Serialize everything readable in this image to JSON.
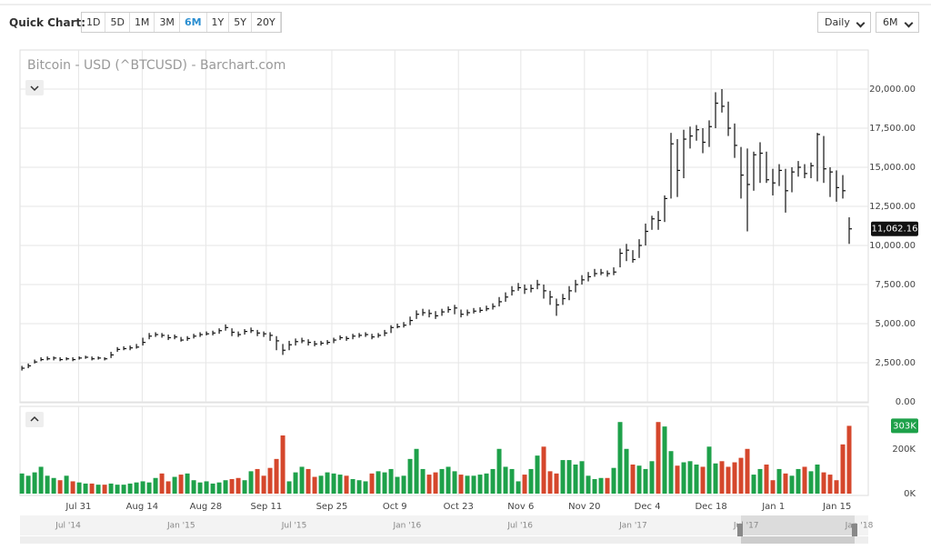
{
  "toolbar": {
    "label": "Quick Chart:",
    "ranges": [
      "1D",
      "5D",
      "1M",
      "3M",
      "6M",
      "1Y",
      "5Y",
      "20Y"
    ],
    "active": 4,
    "interval": "Daily",
    "period": "6M"
  },
  "chart_data": {
    "type": "ohlc",
    "title": "Bitcoin - USD (^BTCUSD) - Barchart.com",
    "color": "#111",
    "grid": true,
    "high": [
      2300,
      2450,
      2700,
      2850,
      2900,
      2900,
      2850,
      2850,
      2850,
      2900,
      2950,
      2900,
      2900,
      2850,
      3200,
      3500,
      3550,
      3600,
      3700,
      4100,
      4400,
      4450,
      4400,
      4300,
      4300,
      4150,
      4200,
      4350,
      4450,
      4500,
      4550,
      4700,
      4950,
      4700,
      4500,
      4650,
      4750,
      4600,
      4500,
      4450,
      4200,
      3700,
      3900,
      4050,
      4100,
      4000,
      3900,
      3900,
      3950,
      4100,
      4250,
      4200,
      4350,
      4400,
      4450,
      4350,
      4400,
      4600,
      4900,
      5000,
      5100,
      5450,
      5850,
      5950,
      5900,
      5800,
      5950,
      6100,
      6200,
      5900,
      5900,
      6000,
      6050,
      6150,
      6300,
      6700,
      7000,
      7400,
      7600,
      7500,
      7500,
      7800,
      7500,
      7100,
      6600,
      6900,
      7400,
      7800,
      8100,
      8300,
      8500,
      8500,
      8400,
      8600,
      9800,
      10100,
      9700,
      10400,
      11400,
      11900,
      12200,
      13200,
      17200,
      16800,
      17400,
      17600,
      17700,
      17500,
      18000,
      19800,
      20000,
      19200,
      17800,
      16300,
      16200,
      16000,
      16600,
      16000,
      14900,
      15200,
      14900,
      15000,
      15400,
      15200,
      15300,
      17200,
      17000,
      15000,
      14800,
      14500,
      11800
    ],
    "low": [
      2000,
      2150,
      2450,
      2600,
      2650,
      2650,
      2600,
      2650,
      2600,
      2700,
      2750,
      2650,
      2700,
      2650,
      2800,
      3200,
      3300,
      3300,
      3400,
      3600,
      4000,
      4150,
      4100,
      3950,
      4000,
      3850,
      3900,
      4050,
      4150,
      4250,
      4250,
      4350,
      4550,
      4200,
      4150,
      4300,
      4400,
      4200,
      4150,
      3900,
      3300,
      3000,
      3300,
      3600,
      3750,
      3600,
      3550,
      3600,
      3650,
      3750,
      3950,
      3900,
      4000,
      4100,
      4150,
      4000,
      4100,
      4200,
      4400,
      4700,
      4750,
      4900,
      5300,
      5500,
      5400,
      5300,
      5500,
      5700,
      5600,
      5400,
      5500,
      5650,
      5700,
      5800,
      5900,
      6100,
      6400,
      6800,
      7100,
      6900,
      7000,
      7200,
      6600,
      6200,
      5500,
      6200,
      6500,
      7000,
      7500,
      7700,
      8000,
      8100,
      8000,
      8100,
      8600,
      9000,
      8900,
      9200,
      10000,
      11000,
      11000,
      11500,
      13000,
      13100,
      14300,
      16200,
      16700,
      15900,
      16300,
      17500,
      18500,
      17000,
      15600,
      13000,
      10900,
      13500,
      14000,
      14000,
      13200,
      13800,
      12100,
      13400,
      14400,
      14300,
      14300,
      14100,
      14000,
      13100,
      12800,
      13000,
      10100
    ],
    "close": [
      2150,
      2300,
      2550,
      2700,
      2750,
      2800,
      2700,
      2750,
      2700,
      2800,
      2850,
      2750,
      2800,
      2750,
      3000,
      3350,
      3400,
      3450,
      3500,
      3800,
      4200,
      4300,
      4250,
      4100,
      4150,
      3950,
      4050,
      4200,
      4300,
      4350,
      4400,
      4550,
      4750,
      4450,
      4300,
      4500,
      4550,
      4400,
      4350,
      4250,
      3900,
      3300,
      3650,
      3850,
      3900,
      3800,
      3700,
      3750,
      3800,
      3950,
      4100,
      4050,
      4200,
      4250,
      4300,
      4150,
      4250,
      4400,
      4750,
      4800,
      4900,
      5200,
      5600,
      5700,
      5650,
      5500,
      5750,
      5900,
      6000,
      5600,
      5700,
      5800,
      5850,
      5950,
      6100,
      6400,
      6700,
      7100,
      7300,
      7200,
      7250,
      7500,
      7100,
      6700,
      6200,
      6600,
      7100,
      7500,
      7800,
      8000,
      8200,
      8250,
      8200,
      8300,
      9500,
      9700,
      9100,
      10000,
      10900,
      11700,
      11600,
      13000,
      16500,
      14800,
      16800,
      17000,
      17400,
      16600,
      17600,
      19100,
      18900,
      17500,
      16400,
      14500,
      13900,
      15800,
      15900,
      14200,
      14000,
      14800,
      13500,
      14700,
      15000,
      14600,
      15100,
      17100,
      14900,
      14700,
      13700,
      13500,
      11062.16
    ],
    "last_value_label": "11,062.16",
    "xlim": [
      -0.3,
      133
    ],
    "xticks": [
      {
        "value": 8.9,
        "label": "Jul 31"
      },
      {
        "value": 18.9,
        "label": "Aug 14"
      },
      {
        "value": 28.9,
        "label": "Aug 28"
      },
      {
        "value": 38.4,
        "label": "Sep 11"
      },
      {
        "value": 48.7,
        "label": "Sep 25"
      },
      {
        "value": 58.6,
        "label": "Oct 9"
      },
      {
        "value": 68.6,
        "label": "Oct 23"
      },
      {
        "value": 78.4,
        "label": "Nov 6"
      },
      {
        "value": 88.4,
        "label": "Nov 20"
      },
      {
        "value": 98.3,
        "label": "Dec 4"
      },
      {
        "value": 108.3,
        "label": "Dec 18"
      },
      {
        "value": 118.1,
        "label": "Jan 1"
      },
      {
        "value": 128.1,
        "label": "Jan 15"
      }
    ],
    "ylim": [
      0,
      22500
    ],
    "yticks": [
      {
        "value": 0,
        "label": "0.00"
      },
      {
        "value": 2500,
        "label": "2,500.00"
      },
      {
        "value": 5000,
        "label": "5,000.00"
      },
      {
        "value": 7500,
        "label": "7,500.00"
      },
      {
        "value": 10000,
        "label": "10,000.00"
      },
      {
        "value": 12500,
        "label": "12,500.00"
      },
      {
        "value": 15000,
        "label": "15,000.00"
      },
      {
        "value": 17500,
        "label": "17,500.00"
      },
      {
        "value": 20000,
        "label": "20,000.00"
      }
    ],
    "volume": {
      "type": "bar",
      "up_color": "#1ea14a",
      "down_color": "#d5472c",
      "values": [
        90,
        80,
        95,
        120,
        80,
        70,
        60,
        80,
        55,
        50,
        45,
        45,
        40,
        40,
        45,
        40,
        40,
        45,
        50,
        55,
        50,
        70,
        90,
        55,
        75,
        85,
        90,
        60,
        50,
        55,
        45,
        50,
        60,
        65,
        70,
        60,
        100,
        110,
        80,
        115,
        155,
        260,
        55,
        95,
        120,
        110,
        75,
        80,
        95,
        90,
        85,
        80,
        65,
        60,
        55,
        90,
        100,
        95,
        110,
        75,
        80,
        155,
        200,
        110,
        85,
        95,
        110,
        120,
        100,
        85,
        80,
        80,
        85,
        90,
        110,
        200,
        120,
        110,
        55,
        85,
        110,
        170,
        210,
        100,
        90,
        150,
        150,
        130,
        145,
        80,
        65,
        70,
        70,
        115,
        320,
        200,
        130,
        125,
        110,
        145,
        320,
        300,
        190,
        125,
        140,
        145,
        130,
        120,
        210,
        135,
        145,
        120,
        140,
        160,
        200,
        85,
        110,
        130,
        60,
        110,
        90,
        80,
        110,
        120,
        100,
        130,
        95,
        85,
        60,
        220,
        303
      ],
      "last_value_label": "303K",
      "ylim": [
        0,
        390
      ],
      "yticks": [
        {
          "value": 0,
          "label": "0K"
        },
        {
          "value": 200,
          "label": "200K"
        }
      ]
    }
  },
  "navigator": {
    "labels": [
      "Jul '14",
      "Jan '15",
      "Jul '15",
      "Jan '16",
      "Jul '16",
      "Jan '17",
      "Jul '17",
      "Jan '18"
    ]
  }
}
